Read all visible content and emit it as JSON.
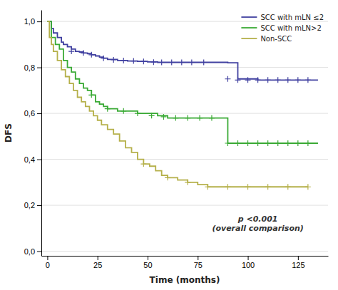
{
  "chart_data": {
    "type": "step",
    "xlabel": "Time (months)",
    "ylabel": "DFS",
    "xlim": [
      -3,
      140
    ],
    "ylim": [
      -0.02,
      1.05
    ],
    "xticks": [
      0,
      25,
      50,
      75,
      100,
      125
    ],
    "yticks": [
      {
        "value": 0.0,
        "label": "0,0"
      },
      {
        "value": 0.2,
        "label": "0,2"
      },
      {
        "value": 0.4,
        "label": "0,4"
      },
      {
        "value": 0.6,
        "label": "0,6"
      },
      {
        "value": 0.8,
        "label": "0,8"
      },
      {
        "value": 1.0,
        "label": "1,0"
      }
    ],
    "grid": "y",
    "legend": "upper right",
    "annotations": [
      {
        "text": "p <0.001\n(overall comparison)",
        "x": 105,
        "y": 0.08
      }
    ],
    "series": [
      {
        "name": "SCC with mLN ≤2",
        "color": "#4040a0",
        "x": [
          0,
          2,
          3,
          5,
          7,
          8,
          10,
          12,
          14,
          16,
          18,
          20,
          22,
          24,
          26,
          28,
          30,
          35,
          40,
          45,
          50,
          55,
          60,
          65,
          70,
          75,
          80,
          85,
          90,
          95,
          100,
          105,
          110,
          115,
          120,
          125,
          130,
          135
        ],
        "values": [
          1.0,
          0.97,
          0.95,
          0.93,
          0.91,
          0.9,
          0.89,
          0.88,
          0.87,
          0.867,
          0.863,
          0.86,
          0.855,
          0.85,
          0.845,
          0.84,
          0.835,
          0.83,
          0.828,
          0.826,
          0.824,
          0.822,
          0.822,
          0.822,
          0.822,
          0.822,
          0.822,
          0.822,
          0.82,
          0.75,
          0.75,
          0.745,
          0.745,
          0.745,
          0.745,
          0.745,
          0.745,
          0.745
        ],
        "censor_x": [
          12,
          18,
          22,
          28,
          33,
          38,
          43,
          48,
          53,
          57,
          62,
          67,
          72,
          78,
          90,
          95,
          100,
          105,
          110,
          115,
          120,
          125,
          130
        ],
        "censor_values": [
          0.87,
          0.863,
          0.855,
          0.84,
          0.833,
          0.83,
          0.828,
          0.826,
          0.823,
          0.822,
          0.822,
          0.822,
          0.822,
          0.822,
          0.75,
          0.745,
          0.745,
          0.745,
          0.745,
          0.745,
          0.745,
          0.745,
          0.745
        ]
      },
      {
        "name": "SCC with mLN>2",
        "color": "#3aaa35",
        "x": [
          0,
          2,
          4,
          6,
          8,
          10,
          12,
          14,
          16,
          18,
          20,
          22,
          24,
          26,
          28,
          30,
          35,
          40,
          45,
          50,
          55,
          60,
          65,
          70,
          75,
          80,
          85,
          90,
          95,
          100,
          105,
          110,
          115,
          120,
          125,
          130,
          135
        ],
        "values": [
          1.0,
          0.93,
          0.9,
          0.88,
          0.83,
          0.8,
          0.78,
          0.75,
          0.73,
          0.71,
          0.7,
          0.68,
          0.65,
          0.64,
          0.63,
          0.62,
          0.61,
          0.61,
          0.6,
          0.6,
          0.59,
          0.58,
          0.58,
          0.58,
          0.58,
          0.58,
          0.58,
          0.47,
          0.47,
          0.47,
          0.47,
          0.47,
          0.47,
          0.47,
          0.47,
          0.47,
          0.47
        ],
        "censor_x": [
          22,
          30,
          38,
          45,
          52,
          58,
          64,
          70,
          76,
          82,
          90,
          95,
          100,
          105,
          110,
          115,
          120,
          125,
          130
        ],
        "censor_values": [
          0.68,
          0.62,
          0.61,
          0.6,
          0.59,
          0.585,
          0.58,
          0.58,
          0.58,
          0.58,
          0.47,
          0.47,
          0.47,
          0.47,
          0.47,
          0.47,
          0.47,
          0.47,
          0.47
        ]
      },
      {
        "name": "Non-SCC",
        "color": "#b5b04a",
        "x": [
          0,
          1,
          2,
          3,
          5,
          7,
          9,
          11,
          13,
          15,
          17,
          19,
          21,
          23,
          25,
          27,
          30,
          33,
          36,
          39,
          42,
          45,
          48,
          51,
          54,
          57,
          60,
          65,
          70,
          75,
          80,
          85,
          90,
          95,
          100,
          105,
          110,
          115,
          120,
          125,
          130
        ],
        "values": [
          1.0,
          0.93,
          0.9,
          0.87,
          0.83,
          0.79,
          0.76,
          0.73,
          0.7,
          0.67,
          0.65,
          0.63,
          0.61,
          0.59,
          0.57,
          0.55,
          0.53,
          0.51,
          0.48,
          0.45,
          0.43,
          0.4,
          0.38,
          0.37,
          0.35,
          0.33,
          0.32,
          0.31,
          0.3,
          0.29,
          0.28,
          0.28,
          0.28,
          0.28,
          0.28,
          0.28,
          0.28,
          0.28,
          0.28,
          0.28,
          0.28
        ],
        "censor_x": [
          48,
          60,
          70,
          80,
          90,
          100,
          110,
          120,
          130
        ],
        "censor_values": [
          0.38,
          0.32,
          0.3,
          0.28,
          0.28,
          0.28,
          0.28,
          0.28,
          0.28
        ]
      }
    ]
  }
}
